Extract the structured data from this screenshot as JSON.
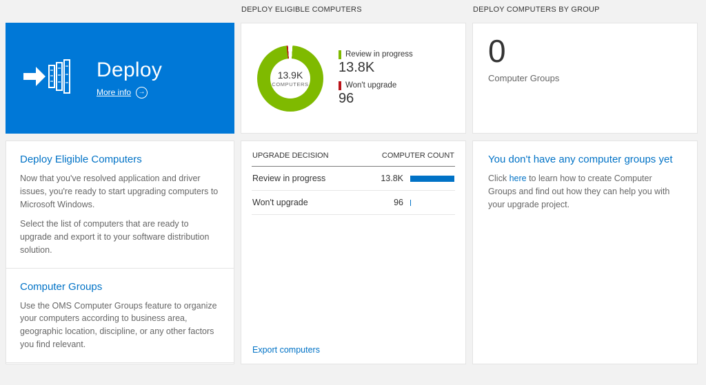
{
  "headers": {
    "middle": "DEPLOY ELIGIBLE COMPUTERS",
    "right": "DEPLOY COMPUTERS BY GROUP"
  },
  "deploy_tile": {
    "title": "Deploy",
    "more_info": "More info",
    "color": "#0078d7"
  },
  "left_card": {
    "section1": {
      "heading": "Deploy Eligible Computers",
      "para1": "Now that you've resolved application and driver issues, you're ready to start upgrading computers to Microsoft Windows.",
      "para2": "Select the list of computers that are ready to upgrade and export it to your software distribution solution."
    },
    "section2": {
      "heading": "Computer Groups",
      "para1": "Use the OMS Computer Groups feature to organize your computers according to business area, geographic location, discipline, or any other factors you find relevant."
    }
  },
  "middle": {
    "donut": {
      "center_value": "13.9K",
      "center_label": "COMPUTERS",
      "legend": [
        {
          "label": "Review in progress",
          "value": "13.8K",
          "color": "#7fba00"
        },
        {
          "label": "Won't upgrade",
          "value": "96",
          "color": "#ba141a"
        }
      ]
    },
    "table": {
      "col1": "UPGRADE DECISION",
      "col2": "COMPUTER COUNT",
      "bar_color": "#0072c6",
      "rows": [
        {
          "decision": "Review in progress",
          "count": "13.8K",
          "bar_pct": 100
        },
        {
          "decision": "Won't upgrade",
          "count": "96",
          "bar_pct": 2
        }
      ]
    },
    "export_link": "Export computers"
  },
  "right": {
    "count": "0",
    "count_label": "Computer Groups",
    "heading": "You don't have any computer groups yet",
    "para_before_link": "Click ",
    "link_text": "here",
    "para_after_link": " to learn how to create Computer Groups and find out how they can help you with your upgrade project."
  },
  "chart_data": {
    "type": "pie",
    "title": "DEPLOY ELIGIBLE COMPUTERS",
    "center_value": "13.9K",
    "center_label": "COMPUTERS",
    "series": [
      {
        "label": "Review in progress",
        "value": 13800
      },
      {
        "label": "Won't upgrade",
        "value": 96
      }
    ],
    "colors": [
      "#7fba00",
      "#ba141a"
    ],
    "legend_position": "right"
  }
}
